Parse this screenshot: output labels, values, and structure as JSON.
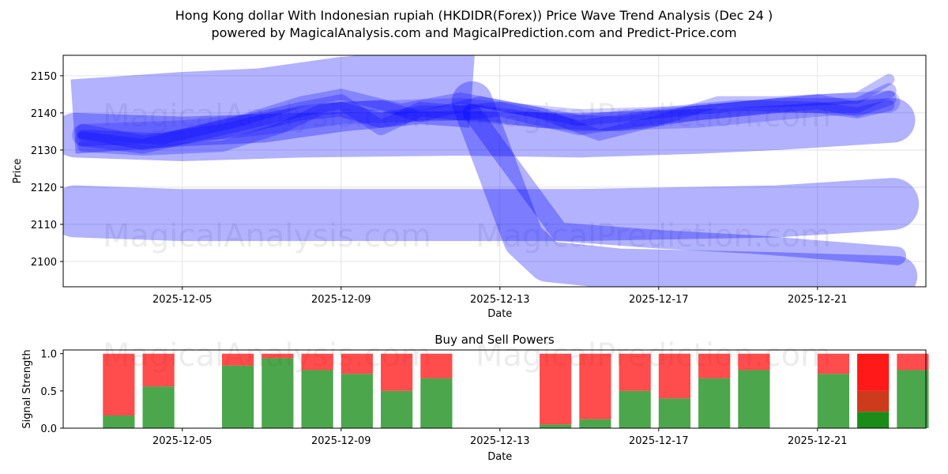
{
  "title_line1": "Hong Kong dollar With Indonesian rupiah (HKDIDR(Forex)) Price Wave Trend Analysis (Dec 24 )",
  "title_line2": "powered by MagicalAnalysis.com and MagicalPrediction.com and Predict-Price.com",
  "watermarks": [
    "MagicalAnalysis.com",
    "MagicalPrediction.com"
  ],
  "colors": {
    "wave": "#0000ff",
    "buy": "#008000",
    "sell": "#ff0000"
  },
  "chart_data": [
    {
      "type": "line",
      "title": "",
      "xlabel": "Date",
      "ylabel": "Price",
      "xlim_day_of_dec": [
        2.0,
        23.73
      ],
      "ylim": [
        2093.2,
        2155.5
      ],
      "xticks": [
        {
          "day": 5,
          "label": "2025-12-05"
        },
        {
          "day": 9,
          "label": "2025-12-09"
        },
        {
          "day": 13,
          "label": "2025-12-13"
        },
        {
          "day": 17,
          "label": "2025-12-17"
        },
        {
          "day": 21,
          "label": "2025-12-21"
        }
      ],
      "yticks": [
        2100,
        2110,
        2120,
        2130,
        2140,
        2150
      ],
      "grid": true,
      "series": [
        {
          "name": "wave-1",
          "width": 20,
          "alpha": 0.3,
          "points": [
            [
              2.25,
              2139
            ],
            [
              5,
              2141
            ],
            [
              7,
              2142
            ],
            [
              9,
              2145
            ],
            [
              11,
              2147
            ],
            [
              12.3,
              2146
            ]
          ]
        },
        {
          "name": "wave-1b",
          "width": 11,
          "alpha": 0.3,
          "points": [
            [
              12.3,
              2143
            ],
            [
              13.6,
              2106
            ],
            [
              14.2,
              2100
            ],
            [
              16,
              2098
            ],
            [
              20,
              2097
            ],
            [
              23,
              2096
            ]
          ]
        },
        {
          "name": "wave-2",
          "width": 14,
          "alpha": 0.3,
          "points": [
            [
              2.3,
              2113.5
            ],
            [
              5,
              2112.5
            ],
            [
              10,
              2112.5
            ],
            [
              15,
              2112.5
            ],
            [
              20,
              2113.5
            ],
            [
              22.9,
              2115.5
            ]
          ]
        },
        {
          "name": "wave-3",
          "width": 12,
          "alpha": 0.3,
          "points": [
            [
              2.3,
              2134
            ],
            [
              5,
              2133
            ],
            [
              8,
              2134
            ],
            [
              12,
              2134.5
            ],
            [
              15,
              2134
            ],
            [
              18,
              2135
            ],
            [
              20,
              2136
            ],
            [
              22.9,
              2138
            ]
          ]
        },
        {
          "name": "wave-4",
          "width": 5,
          "alpha": 0.3,
          "points": [
            [
              12.3,
              2140
            ],
            [
              14.5,
              2108
            ],
            [
              17,
              2106
            ],
            [
              19.5,
              2104.5
            ],
            [
              23,
              2101.5
            ]
          ]
        },
        {
          "name": "wave-5",
          "width": 4,
          "alpha": 0.25,
          "points": [
            [
              2.5,
              2133
            ],
            [
              4,
              2131
            ],
            [
              6,
              2136
            ],
            [
              8,
              2141
            ],
            [
              9,
              2143
            ],
            [
              10,
              2136
            ],
            [
              11,
              2141
            ],
            [
              12,
              2140
            ],
            [
              13,
              2141
            ],
            [
              15,
              2136
            ],
            [
              17,
              2139
            ],
            [
              19,
              2141
            ],
            [
              21,
              2143
            ],
            [
              22,
              2141
            ],
            [
              22.8,
              2144
            ]
          ]
        },
        {
          "name": "wave-6",
          "width": 4,
          "alpha": 0.25,
          "points": [
            [
              2.5,
              2135
            ],
            [
              4,
              2132
            ],
            [
              6,
              2135
            ],
            [
              8,
              2140
            ],
            [
              9,
              2141
            ],
            [
              10,
              2138
            ],
            [
              11,
              2140
            ],
            [
              12.5,
              2140
            ],
            [
              14,
              2138
            ],
            [
              16,
              2137
            ],
            [
              18,
              2140
            ],
            [
              20,
              2142
            ],
            [
              22,
              2142
            ],
            [
              22.8,
              2146
            ]
          ]
        },
        {
          "name": "wave-7",
          "width": 3,
          "alpha": 0.25,
          "points": [
            [
              2.5,
              2131
            ],
            [
              4,
              2130
            ],
            [
              6,
              2131
            ],
            [
              7.5,
              2136
            ],
            [
              8.5,
              2141
            ],
            [
              10,
              2142
            ],
            [
              11,
              2139
            ],
            [
              12.5,
              2143
            ],
            [
              14,
              2140
            ],
            [
              15.5,
              2134
            ],
            [
              17,
              2138
            ],
            [
              18.5,
              2143
            ],
            [
              20,
              2143
            ],
            [
              22,
              2144
            ],
            [
              22.8,
              2149
            ]
          ]
        },
        {
          "name": "wave-8",
          "width": 3,
          "alpha": 0.25,
          "points": [
            [
              2.5,
              2134
            ],
            [
              4.5,
              2133
            ],
            [
              6.5,
              2138
            ],
            [
              8,
              2143
            ],
            [
              9,
              2145
            ],
            [
              10.5,
              2141
            ],
            [
              12,
              2144
            ],
            [
              13.5,
              2141
            ],
            [
              15,
              2138
            ],
            [
              17,
              2140
            ],
            [
              19,
              2142
            ],
            [
              21,
              2141.5
            ],
            [
              22,
              2140
            ],
            [
              22.8,
              2142
            ]
          ]
        },
        {
          "name": "wave-9",
          "width": 6,
          "alpha": 0.2,
          "points": [
            [
              2.5,
              2134
            ],
            [
              5,
              2135
            ],
            [
              7,
              2137
            ],
            [
              9,
              2140
            ],
            [
              12,
              2141
            ],
            [
              15,
              2138
            ],
            [
              18,
              2139
            ],
            [
              21,
              2142
            ],
            [
              22.8,
              2143
            ]
          ]
        }
      ]
    },
    {
      "type": "bar",
      "title": "Buy and Sell Powers",
      "xlabel": "Date",
      "ylabel": "Signal Strength",
      "ylim": [
        0,
        1.05
      ],
      "yticks": [
        0.0,
        0.5,
        1.0
      ],
      "xticks": [
        {
          "day": 5,
          "label": "2025-12-05"
        },
        {
          "day": 9,
          "label": "2025-12-09"
        },
        {
          "day": 13,
          "label": "2025-12-13"
        },
        {
          "day": 17,
          "label": "2025-12-17"
        },
        {
          "day": 21,
          "label": "2025-12-21"
        }
      ],
      "categories": [
        "2025-12-03",
        "2025-12-04",
        "2025-12-06",
        "2025-12-07",
        "2025-12-08",
        "2025-12-09",
        "2025-12-10",
        "2025-12-11",
        "2025-12-14",
        "2025-12-15",
        "2025-12-16",
        "2025-12-17",
        "2025-12-18",
        "2025-12-19",
        "2025-12-21",
        "2025-12-22",
        "2025-12-23"
      ],
      "days": [
        3,
        4,
        6,
        7,
        8,
        9,
        10,
        11,
        14,
        15,
        16,
        17,
        18,
        19,
        21,
        22,
        23
      ],
      "series": [
        {
          "name": "Buy",
          "values": [
            0.17,
            0.56,
            0.84,
            0.94,
            0.78,
            0.73,
            0.5,
            0.67,
            0.05,
            0.12,
            0.5,
            0.4,
            0.67,
            0.78,
            0.73,
            0.22,
            0.78
          ]
        },
        {
          "name": "Sell",
          "values": [
            0.83,
            0.44,
            0.16,
            0.06,
            0.22,
            0.27,
            0.5,
            0.33,
            0.95,
            0.88,
            0.5,
            0.6,
            0.33,
            0.22,
            0.27,
            0.78,
            0.22
          ]
        }
      ]
    }
  ]
}
